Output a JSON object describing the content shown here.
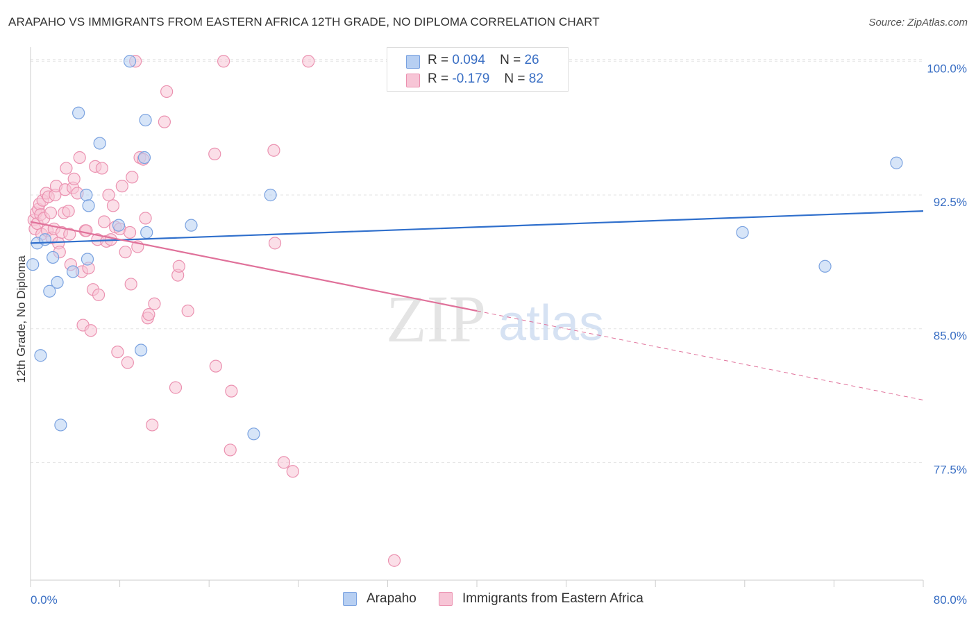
{
  "title": "ARAPAHO VS IMMIGRANTS FROM EASTERN AFRICA 12TH GRADE, NO DIPLOMA CORRELATION CHART",
  "source": "Source: ZipAtlas.com",
  "watermark": {
    "zip": "ZIP",
    "atlas": "atlas"
  },
  "legend": {
    "r_label": "R =",
    "n_label": "N =",
    "rows": [
      {
        "name": "Arapaho",
        "r": "0.094",
        "n": "26",
        "fill": "#b7cff2",
        "stroke": "#7aa2e0"
      },
      {
        "name": "Immigrants from Eastern Africa",
        "r": "-0.179",
        "n": "82",
        "fill": "#f7c5d6",
        "stroke": "#eb91b0"
      }
    ]
  },
  "chart_data": {
    "type": "scatter",
    "title": "ARAPAHO VS IMMIGRANTS FROM EASTERN AFRICA 12TH GRADE, NO DIPLOMA CORRELATION CHART",
    "xlabel": "",
    "ylabel": "12th Grade, No Diploma",
    "xlim": [
      0,
      80
    ],
    "ylim": [
      70.9,
      101.1
    ],
    "x_tick_labels": {
      "min": "0.0%",
      "max": "80.0%"
    },
    "y_ticks": [
      77.5,
      85.0,
      92.5,
      100.0
    ],
    "y_tick_labels": [
      "77.5%",
      "85.0%",
      "92.5%",
      "100.0%"
    ],
    "grid": true,
    "legend_position": "top-center",
    "series": [
      {
        "name": "Arapaho",
        "color": "#7aa2e0",
        "fill": "#b7cff2",
        "line_color": "#2f6fcc",
        "trend": {
          "x": [
            0,
            80
          ],
          "y": [
            89.8,
            91.6
          ]
        },
        "points": [
          [
            0.2,
            88.6
          ],
          [
            0.6,
            89.8
          ],
          [
            0.9,
            83.5
          ],
          [
            1.3,
            90.0
          ],
          [
            1.7,
            87.1
          ],
          [
            2.0,
            89.0
          ],
          [
            2.4,
            87.6
          ],
          [
            2.7,
            79.6
          ],
          [
            3.8,
            88.2
          ],
          [
            4.3,
            97.1
          ],
          [
            5.0,
            92.5
          ],
          [
            5.2,
            91.9
          ],
          [
            5.1,
            88.9
          ],
          [
            6.2,
            95.4
          ],
          [
            7.9,
            90.8
          ],
          [
            8.9,
            100.0
          ],
          [
            9.9,
            83.8
          ],
          [
            10.2,
            94.6
          ],
          [
            10.3,
            96.7
          ],
          [
            10.4,
            90.4
          ],
          [
            14.4,
            90.8
          ],
          [
            20.0,
            79.1
          ],
          [
            21.5,
            92.5
          ],
          [
            63.8,
            90.4
          ],
          [
            71.2,
            88.5
          ],
          [
            77.6,
            94.3
          ]
        ]
      },
      {
        "name": "Immigrants from Eastern Africa",
        "color": "#eb91b0",
        "fill": "#f7c5d6",
        "line_color": "#e0719a",
        "trend": {
          "x": [
            0,
            40
          ],
          "y": [
            91.0,
            86.0
          ]
        },
        "trend_dashed": {
          "x": [
            40,
            80
          ],
          "y": [
            86.0,
            81.0
          ]
        },
        "points": [
          [
            0.3,
            91.1
          ],
          [
            0.4,
            90.6
          ],
          [
            0.5,
            91.5
          ],
          [
            0.6,
            90.9
          ],
          [
            0.7,
            91.7
          ],
          [
            0.8,
            92.0
          ],
          [
            0.9,
            91.4
          ],
          [
            1.0,
            90.3
          ],
          [
            1.1,
            92.2
          ],
          [
            1.2,
            91.2
          ],
          [
            1.4,
            92.6
          ],
          [
            1.5,
            90.5
          ],
          [
            1.6,
            92.4
          ],
          [
            1.8,
            91.5
          ],
          [
            1.9,
            90.1
          ],
          [
            2.1,
            90.6
          ],
          [
            2.2,
            92.5
          ],
          [
            2.3,
            93.0
          ],
          [
            2.5,
            89.8
          ],
          [
            2.6,
            89.3
          ],
          [
            2.8,
            90.4
          ],
          [
            3.0,
            91.5
          ],
          [
            3.1,
            92.8
          ],
          [
            3.2,
            94.0
          ],
          [
            3.4,
            91.6
          ],
          [
            3.5,
            90.3
          ],
          [
            3.6,
            88.6
          ],
          [
            3.8,
            92.9
          ],
          [
            3.9,
            93.4
          ],
          [
            4.2,
            92.6
          ],
          [
            4.4,
            94.6
          ],
          [
            4.6,
            88.2
          ],
          [
            4.7,
            85.2
          ],
          [
            4.9,
            90.5
          ],
          [
            5.0,
            90.5
          ],
          [
            5.2,
            88.4
          ],
          [
            5.4,
            84.9
          ],
          [
            5.6,
            87.2
          ],
          [
            5.8,
            94.1
          ],
          [
            6.0,
            90.0
          ],
          [
            6.1,
            86.9
          ],
          [
            6.4,
            94.0
          ],
          [
            6.6,
            91.0
          ],
          [
            6.8,
            89.9
          ],
          [
            7.0,
            92.5
          ],
          [
            7.2,
            90.0
          ],
          [
            7.4,
            91.9
          ],
          [
            7.6,
            90.7
          ],
          [
            7.8,
            83.7
          ],
          [
            8.0,
            90.6
          ],
          [
            8.2,
            93.0
          ],
          [
            8.5,
            89.3
          ],
          [
            8.7,
            83.1
          ],
          [
            8.9,
            90.4
          ],
          [
            9.0,
            87.5
          ],
          [
            9.1,
            93.5
          ],
          [
            9.4,
            100.0
          ],
          [
            9.6,
            89.6
          ],
          [
            9.8,
            94.6
          ],
          [
            10.1,
            94.5
          ],
          [
            10.3,
            91.2
          ],
          [
            10.5,
            85.6
          ],
          [
            10.6,
            85.8
          ],
          [
            10.9,
            79.6
          ],
          [
            11.1,
            86.4
          ],
          [
            12.0,
            96.6
          ],
          [
            12.2,
            98.3
          ],
          [
            13.0,
            81.7
          ],
          [
            13.2,
            88.0
          ],
          [
            13.3,
            88.5
          ],
          [
            14.1,
            86.0
          ],
          [
            16.5,
            94.8
          ],
          [
            16.6,
            82.9
          ],
          [
            17.3,
            100.0
          ],
          [
            17.9,
            78.2
          ],
          [
            18.0,
            81.5
          ],
          [
            21.8,
            95.0
          ],
          [
            21.9,
            89.8
          ],
          [
            22.7,
            77.5
          ],
          [
            23.5,
            77.0
          ],
          [
            24.9,
            100.0
          ],
          [
            32.6,
            72.0
          ]
        ]
      }
    ]
  }
}
